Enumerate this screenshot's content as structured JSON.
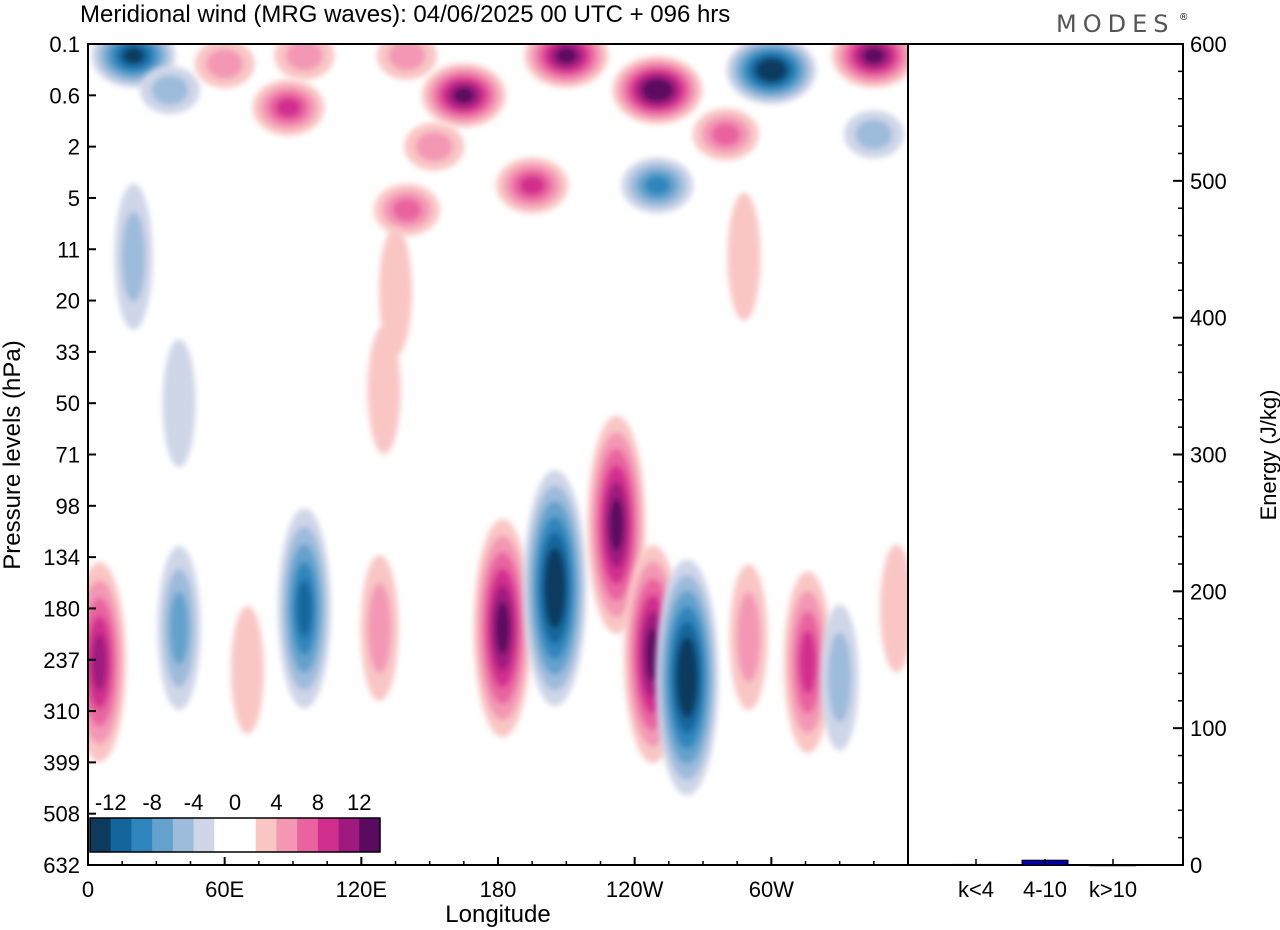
{
  "title": "Meridional wind (MRG waves):  04/06/2025  00 UTC  + 096 hrs",
  "logo": "MODES",
  "logo_mark": "®",
  "chart_data": [
    {
      "type": "heatmap",
      "xlabel": "Longitude",
      "ylabel": "Pressure levels (hPa)",
      "x_ticks": [
        "0",
        "60E",
        "120E",
        "180",
        "120W",
        "60W"
      ],
      "x_tick_values": [
        0,
        60,
        120,
        180,
        240,
        300
      ],
      "x_range": [
        0,
        360
      ],
      "y_ticks": [
        "0.1",
        "0.6",
        "2",
        "5",
        "11",
        "20",
        "33",
        "50",
        "71",
        "98",
        "134",
        "180",
        "237",
        "310",
        "399",
        "508",
        "632"
      ],
      "colorbar": {
        "tick_labels": [
          "-12",
          "-8",
          "-4",
          "0",
          "4",
          "8",
          "12"
        ],
        "levels": [
          -14,
          -12,
          -10,
          -8,
          -6,
          -4,
          -2,
          0,
          2,
          4,
          6,
          8,
          10,
          12,
          14
        ],
        "colors": [
          "#0d3b5e",
          "#13669c",
          "#2e86bd",
          "#64a2cc",
          "#9dbbdb",
          "#cfd6e8",
          "#ffffff",
          "#ffffff",
          "#f9c6c4",
          "#f397b5",
          "#e9649f",
          "#d12f8e",
          "#9e1a7e",
          "#5a0a5f"
        ]
      },
      "features": [
        {
          "lon": 20,
          "level": 0.15,
          "value": -13
        },
        {
          "lon": 36,
          "level": 0.5,
          "value": -4
        },
        {
          "lon": 60,
          "level": 0.2,
          "value": 4
        },
        {
          "lon": 88,
          "level": 0.8,
          "value": 9
        },
        {
          "lon": 95,
          "level": 0.15,
          "value": 5
        },
        {
          "lon": 140,
          "level": 0.15,
          "value": 4
        },
        {
          "lon": 165,
          "level": 0.6,
          "value": 13
        },
        {
          "lon": 152,
          "level": 2,
          "value": 5
        },
        {
          "lon": 210,
          "level": 0.15,
          "value": 13
        },
        {
          "lon": 250,
          "level": 0.5,
          "value": 14
        },
        {
          "lon": 250,
          "level": 4,
          "value": -9
        },
        {
          "lon": 195,
          "level": 4,
          "value": 9
        },
        {
          "lon": 280,
          "level": 1.5,
          "value": 7
        },
        {
          "lon": 300,
          "level": 0.25,
          "value": -14
        },
        {
          "lon": 345,
          "level": 0.15,
          "value": 13
        },
        {
          "lon": 345,
          "level": 1.5,
          "value": -5
        },
        {
          "lon": 140,
          "level": 6,
          "value": 6
        },
        {
          "lon": 20,
          "level": 12,
          "value": -4
        },
        {
          "lon": 135,
          "level": 18,
          "value": 3
        },
        {
          "lon": 288,
          "level": 12,
          "value": 3
        },
        {
          "lon": 130,
          "level": 45,
          "value": 3
        },
        {
          "lon": 40,
          "level": 50,
          "value": -3
        },
        {
          "lon": 5,
          "level": 240,
          "value": 11
        },
        {
          "lon": 40,
          "level": 200,
          "value": -6
        },
        {
          "lon": 70,
          "level": 250,
          "value": 3
        },
        {
          "lon": 95,
          "level": 180,
          "value": -10
        },
        {
          "lon": 128,
          "level": 200,
          "value": 5
        },
        {
          "lon": 182,
          "level": 200,
          "value": 12
        },
        {
          "lon": 205,
          "level": 160,
          "value": -14
        },
        {
          "lon": 232,
          "level": 110,
          "value": 13
        },
        {
          "lon": 248,
          "level": 230,
          "value": 12
        },
        {
          "lon": 263,
          "level": 260,
          "value": -14
        },
        {
          "lon": 290,
          "level": 210,
          "value": 5
        },
        {
          "lon": 316,
          "level": 240,
          "value": 8
        },
        {
          "lon": 330,
          "level": 260,
          "value": -5
        },
        {
          "lon": 355,
          "level": 180,
          "value": 3
        }
      ]
    },
    {
      "type": "bar",
      "categories": [
        "k<4",
        "4-10",
        "k>10"
      ],
      "values": [
        0.4,
        3.5,
        0.2
      ],
      "ylabel": "Energy (J/kg)",
      "ylim": [
        0,
        600
      ],
      "y_ticks": [
        "0",
        "100",
        "200",
        "300",
        "400",
        "500",
        "600"
      ],
      "bar_color": "#0000aa"
    }
  ]
}
